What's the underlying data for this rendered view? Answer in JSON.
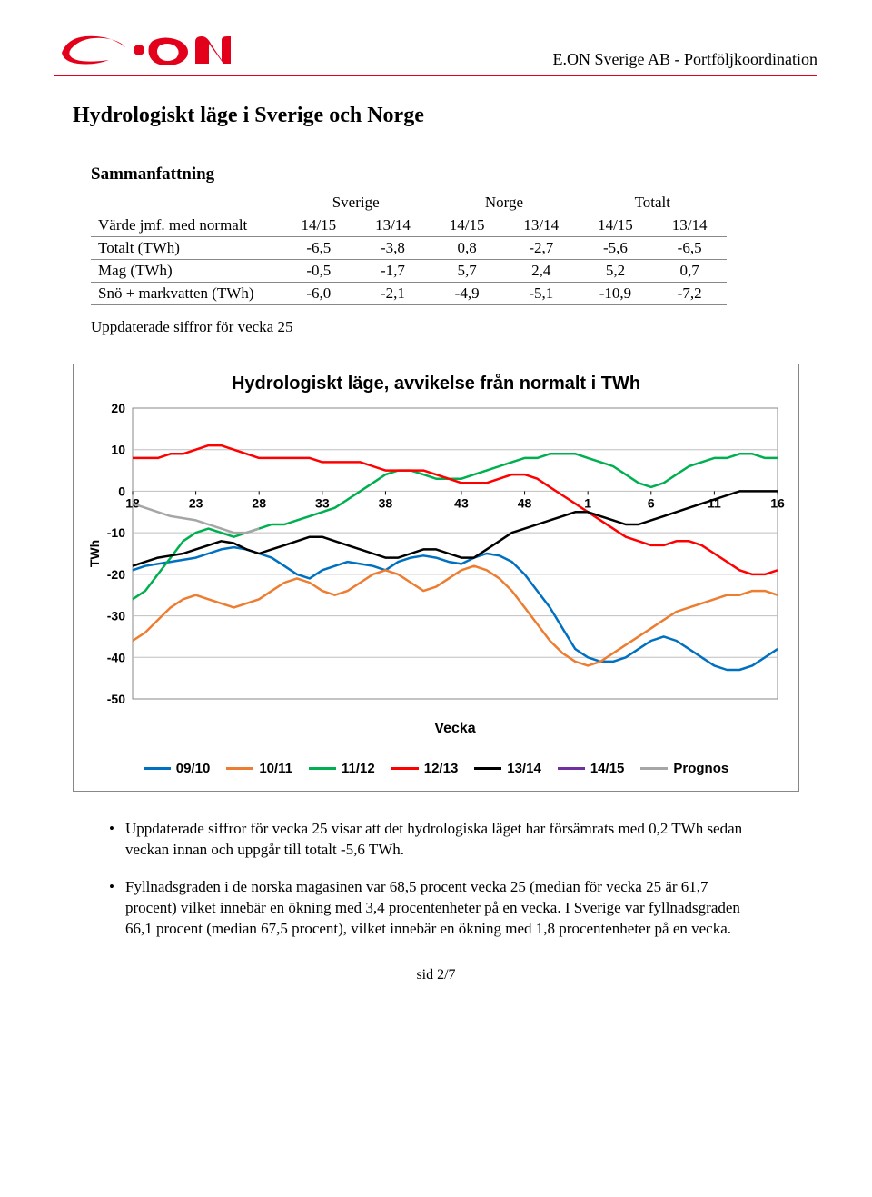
{
  "header": {
    "company_text": "E.ON Sverige AB - Portföljkoordination",
    "logo_red": "#e2001a"
  },
  "title": "Hydrologiskt läge i Sverige och Norge",
  "subtitle": "Sammanfattning",
  "table": {
    "group_labels": [
      "Sverige",
      "Norge",
      "Totalt"
    ],
    "row_header_label": "Värde jmf. med normalt",
    "col_labels": [
      "14/15",
      "13/14",
      "14/15",
      "13/14",
      "14/15",
      "13/14"
    ],
    "rows": [
      {
        "label": "Totalt (TWh)",
        "cells": [
          "-6,5",
          "-3,8",
          "0,8",
          "-2,7",
          "-5,6",
          "-6,5"
        ]
      },
      {
        "label": "Mag (TWh)",
        "cells": [
          "-0,5",
          "-1,7",
          "5,7",
          "2,4",
          "5,2",
          "0,7"
        ]
      },
      {
        "label": "Snö + markvatten (TWh)",
        "cells": [
          "-6,0",
          "-2,1",
          "-4,9",
          "-5,1",
          "-10,9",
          "-7,2"
        ]
      }
    ]
  },
  "update_note": "Uppdaterade siffror för vecka 25",
  "chart": {
    "type": "line",
    "title": "Hydrologiskt läge, avvikelse från normalt i TWh",
    "ylabel": "TWh",
    "xlabel": "Vecka",
    "ylim": [
      -50,
      20
    ],
    "ytick_step": 10,
    "x_labels": [
      "18",
      "23",
      "28",
      "33",
      "38",
      "43",
      "48",
      "1",
      "6",
      "11",
      "16"
    ],
    "x_count": 52,
    "background_color": "#ffffff",
    "grid_color": "#bfbfbf",
    "axis_font": "Arial",
    "axis_fontsize": 14,
    "axis_fontweight": "bold",
    "line_width": 2.5,
    "series": [
      {
        "name": "09/10",
        "color": "#0070c0",
        "values": [
          -19,
          -18,
          -17.5,
          -17,
          -16.5,
          -16,
          -15,
          -14,
          -13.5,
          -14,
          -15,
          -16,
          -18,
          -20,
          -21,
          -19,
          -18,
          -17,
          -17.5,
          -18,
          -19,
          -17,
          -16,
          -15.5,
          -16,
          -17,
          -17.5,
          -16,
          -15,
          -15.5,
          -17,
          -20,
          -24,
          -28,
          -33,
          -38,
          -40,
          -41,
          -41,
          -40,
          -38,
          -36,
          -35,
          -36,
          -38,
          -40,
          -42,
          -43,
          -43,
          -42,
          -40,
          -38
        ]
      },
      {
        "name": "10/11",
        "color": "#ed7d31",
        "values": [
          -36,
          -34,
          -31,
          -28,
          -26,
          -25,
          -26,
          -27,
          -28,
          -27,
          -26,
          -24,
          -22,
          -21,
          -22,
          -24,
          -25,
          -24,
          -22,
          -20,
          -19,
          -20,
          -22,
          -24,
          -23,
          -21,
          -19,
          -18,
          -19,
          -21,
          -24,
          -28,
          -32,
          -36,
          -39,
          -41,
          -42,
          -41,
          -39,
          -37,
          -35,
          -33,
          -31,
          -29,
          -28,
          -27,
          -26,
          -25,
          -25,
          -24,
          -24,
          -25
        ]
      },
      {
        "name": "11/12",
        "color": "#00b050",
        "values": [
          -26,
          -24,
          -20,
          -16,
          -12,
          -10,
          -9,
          -10,
          -11,
          -10,
          -9,
          -8,
          -8,
          -7,
          -6,
          -5,
          -4,
          -2,
          0,
          2,
          4,
          5,
          5,
          4,
          3,
          3,
          3,
          4,
          5,
          6,
          7,
          8,
          8,
          9,
          9,
          9,
          8,
          7,
          6,
          4,
          2,
          1,
          2,
          4,
          6,
          7,
          8,
          8,
          9,
          9,
          8,
          8
        ]
      },
      {
        "name": "12/13",
        "color": "#ff0000",
        "values": [
          8,
          8,
          8,
          9,
          9,
          10,
          11,
          11,
          10,
          9,
          8,
          8,
          8,
          8,
          8,
          7,
          7,
          7,
          7,
          6,
          5,
          5,
          5,
          5,
          4,
          3,
          2,
          2,
          2,
          3,
          4,
          4,
          3,
          1,
          -1,
          -3,
          -5,
          -7,
          -9,
          -11,
          -12,
          -13,
          -13,
          -12,
          -12,
          -13,
          -15,
          -17,
          -19,
          -20,
          -20,
          -19
        ]
      },
      {
        "name": "13/14",
        "color": "#000000",
        "values": [
          -18,
          -17,
          -16,
          -15.5,
          -15,
          -14,
          -13,
          -12,
          -12.5,
          -14,
          -15,
          -14,
          -13,
          -12,
          -11,
          -11,
          -12,
          -13,
          -14,
          -15,
          -16,
          -16,
          -15,
          -14,
          -14,
          -15,
          -16,
          -16,
          -14,
          -12,
          -10,
          -9,
          -8,
          -7,
          -6,
          -5,
          -5,
          -6,
          -7,
          -8,
          -8,
          -7,
          -6,
          -5,
          -4,
          -3,
          -2,
          -1,
          0,
          0,
          0,
          0
        ]
      },
      {
        "name": "14/15",
        "color": "#7030a0",
        "values": [
          null,
          null,
          null,
          null,
          null,
          null,
          null,
          null,
          null,
          null,
          null,
          null,
          null,
          null,
          null,
          null,
          null,
          null,
          null,
          null,
          null,
          null,
          null,
          null,
          null,
          null,
          null,
          null,
          null,
          null,
          null,
          null,
          null,
          null,
          null,
          null,
          null,
          null,
          null,
          null,
          null,
          null,
          null,
          null,
          null,
          null,
          null,
          null,
          null,
          null,
          null,
          null
        ]
      },
      {
        "name": "Prognos",
        "color": "#a6a6a6",
        "values": [
          -3,
          -4,
          -5,
          -6,
          -6.5,
          -7,
          -8,
          -9,
          -10,
          -10,
          -9,
          null,
          null,
          null,
          null,
          null,
          null,
          null,
          null,
          null,
          null,
          null,
          null,
          null,
          null,
          null,
          null,
          null,
          null,
          null,
          null,
          null,
          null,
          null,
          null,
          null,
          null,
          null,
          null,
          null,
          null,
          null,
          null,
          null,
          null,
          null,
          null,
          null,
          null,
          null,
          null,
          null
        ]
      }
    ]
  },
  "bullets": [
    "Uppdaterade siffror för vecka 25 visar att det hydrologiska läget har försämrats med 0,2 TWh sedan veckan innan och uppgår till totalt -5,6 TWh.",
    "Fyllnadsgraden i de norska magasinen var 68,5 procent vecka 25 (median för vecka 25 är 61,7 procent) vilket innebär en ökning med 3,4 procentenheter på en vecka. I Sverige var fyllnadsgraden 66,1 procent (median 67,5 procent), vilket innebär en ökning med 1,8 procentenheter på en vecka."
  ],
  "footer": "sid 2/7"
}
